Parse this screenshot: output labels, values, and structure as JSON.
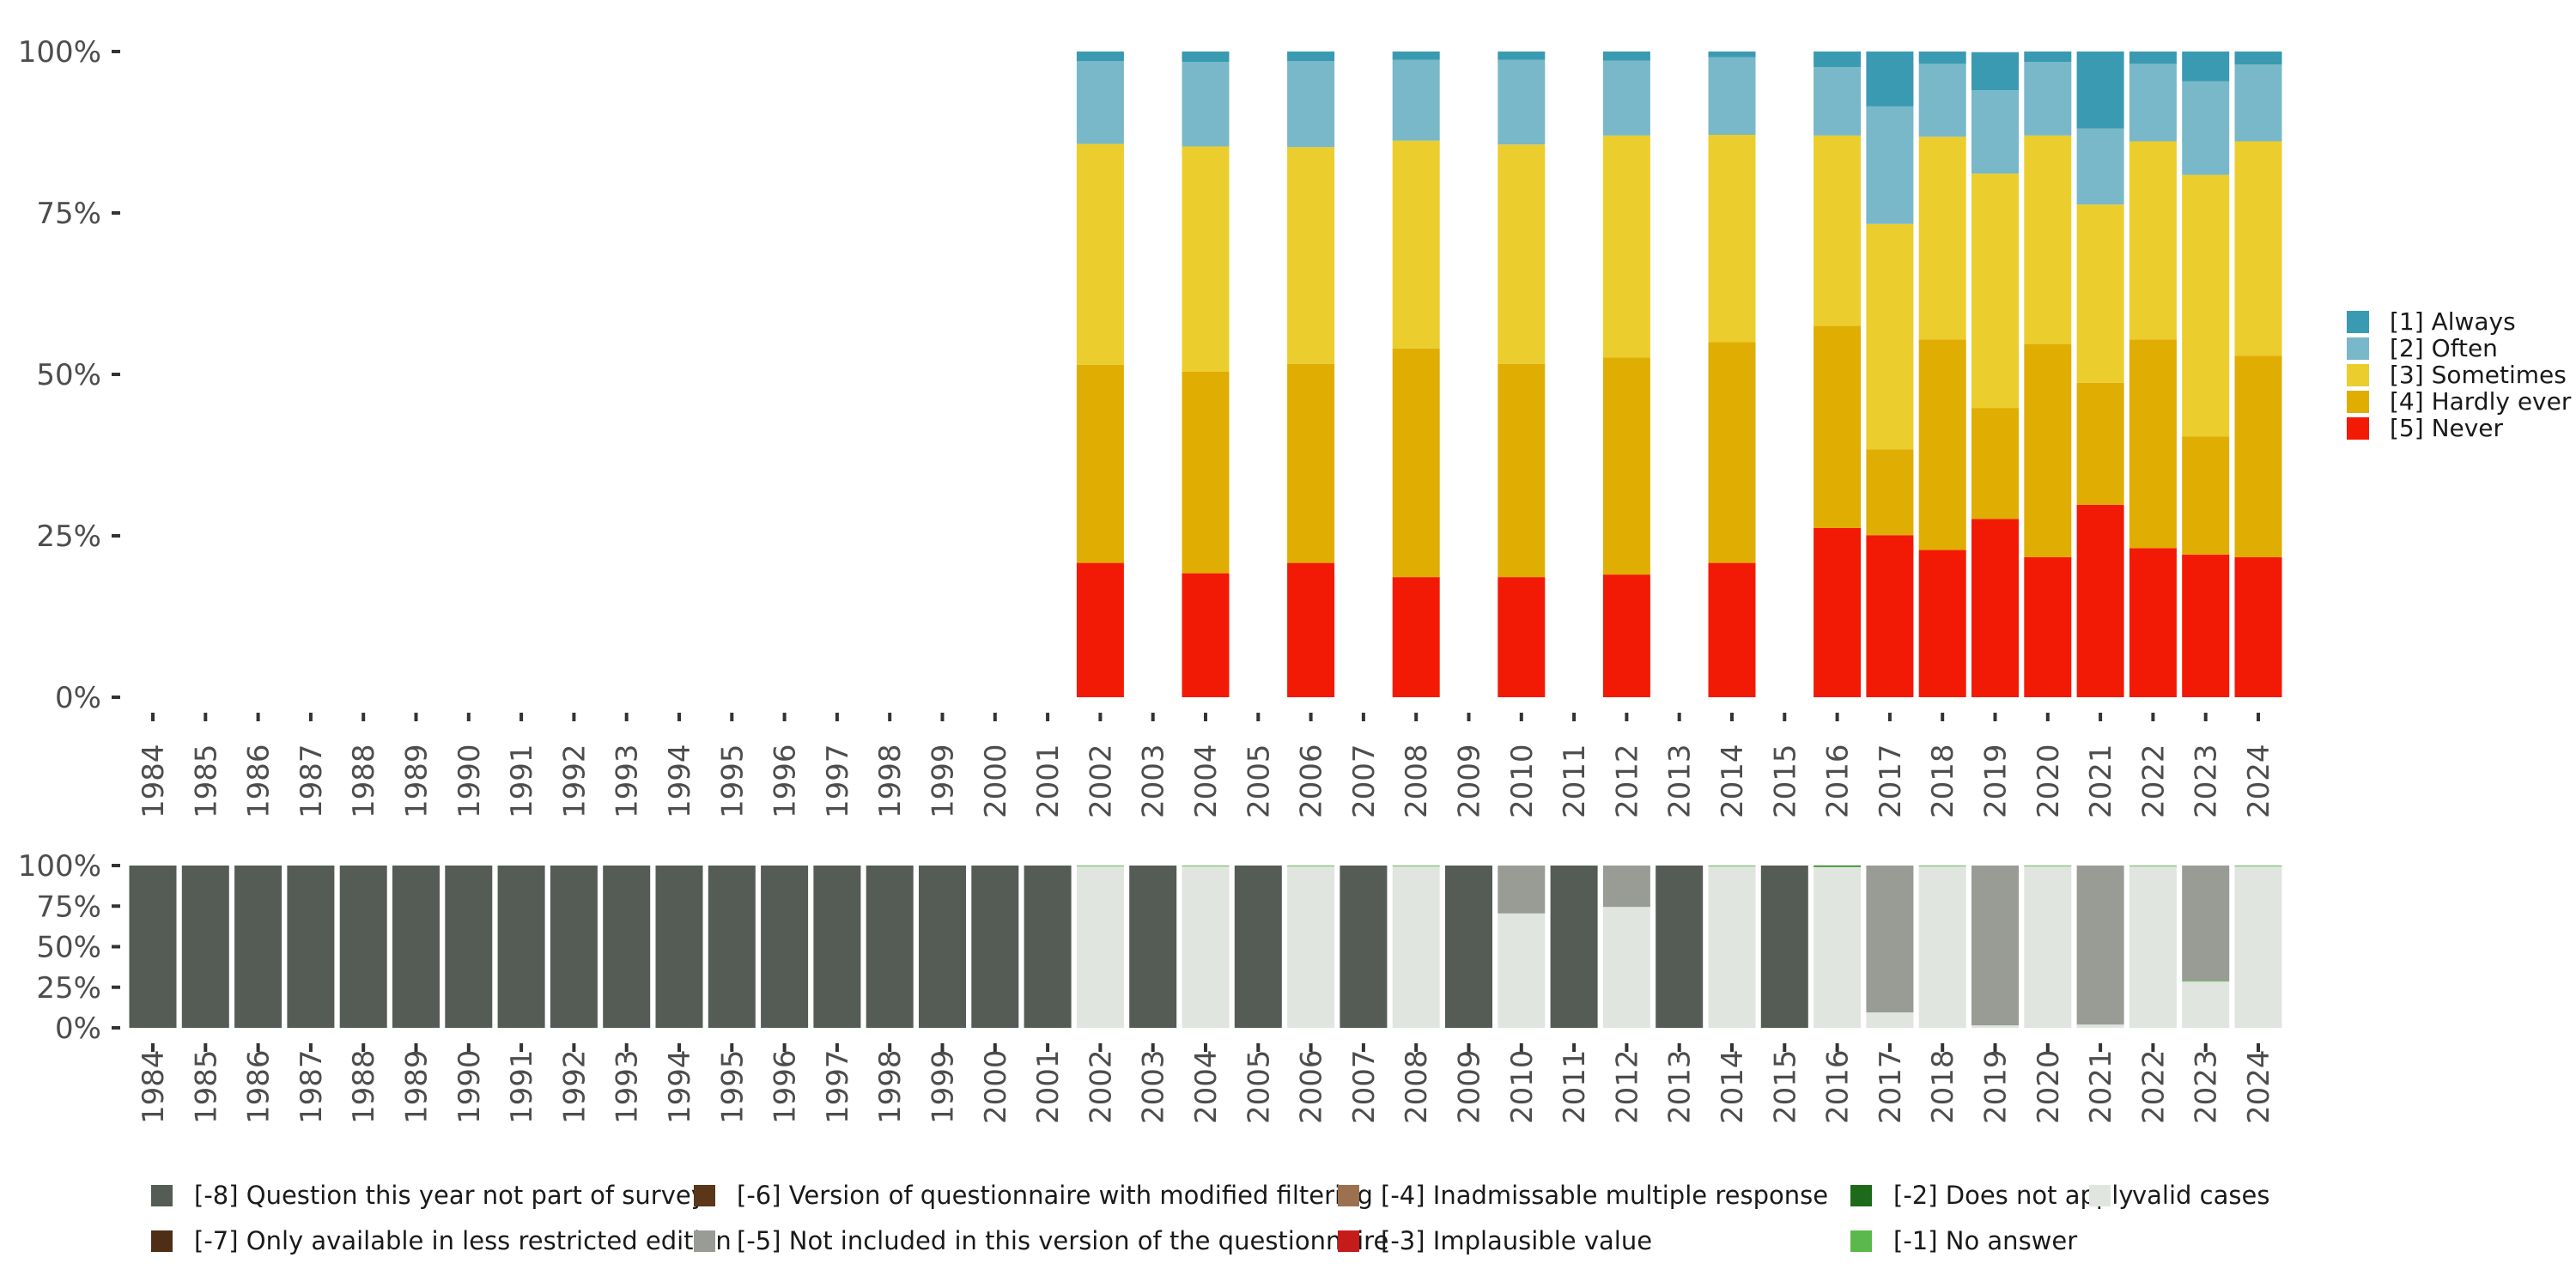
{
  "chart_data": [
    {
      "name": "response-distribution",
      "type": "bar",
      "stacked": true,
      "normalized": true,
      "categories": [
        "1984",
        "1985",
        "1986",
        "1987",
        "1988",
        "1989",
        "1990",
        "1991",
        "1992",
        "1993",
        "1994",
        "1995",
        "1996",
        "1997",
        "1998",
        "1999",
        "2000",
        "2001",
        "2002",
        "2003",
        "2004",
        "2005",
        "2006",
        "2007",
        "2008",
        "2009",
        "2010",
        "2011",
        "2012",
        "2013",
        "2014",
        "2015",
        "2016",
        "2017",
        "2018",
        "2019",
        "2020",
        "2021",
        "2022",
        "2023",
        "2024"
      ],
      "ylim": [
        0,
        100
      ],
      "yticks": [
        0,
        25,
        50,
        75,
        100
      ],
      "ytick_labels": [
        "0%",
        "25%",
        "50%",
        "75%",
        "100%"
      ],
      "legend_position": "right",
      "series": [
        {
          "name": "[5] Never",
          "color": "#f21a05",
          "values": [
            null,
            null,
            null,
            null,
            null,
            null,
            null,
            null,
            null,
            null,
            null,
            null,
            null,
            null,
            null,
            null,
            null,
            null,
            20.8,
            null,
            19.2,
            null,
            20.8,
            null,
            18.6,
            null,
            18.6,
            null,
            19.0,
            null,
            20.8,
            null,
            26.2,
            25.1,
            22.8,
            27.6,
            21.7,
            29.8,
            23.1,
            22.1,
            21.7
          ]
        },
        {
          "name": "[4] Hardly ever",
          "color": "#e0ad02",
          "values": [
            null,
            null,
            null,
            null,
            null,
            null,
            null,
            null,
            null,
            null,
            null,
            null,
            null,
            null,
            null,
            null,
            null,
            null,
            30.7,
            null,
            31.2,
            null,
            30.8,
            null,
            35.4,
            null,
            33.0,
            null,
            33.6,
            null,
            34.2,
            null,
            31.3,
            13.3,
            32.6,
            17.2,
            33.0,
            18.9,
            32.3,
            18.3,
            31.2
          ]
        },
        {
          "name": "[3] Sometimes",
          "color": "#ebcd2e",
          "values": [
            null,
            null,
            null,
            null,
            null,
            null,
            null,
            null,
            null,
            null,
            null,
            null,
            null,
            null,
            null,
            null,
            null,
            null,
            34.2,
            null,
            34.9,
            null,
            33.6,
            null,
            32.2,
            null,
            34.0,
            null,
            34.4,
            null,
            32.1,
            null,
            29.5,
            34.9,
            31.4,
            36.3,
            32.3,
            27.6,
            30.7,
            40.5,
            33.2
          ]
        },
        {
          "name": "[2] Often",
          "color": "#78b8c8",
          "values": [
            null,
            null,
            null,
            null,
            null,
            null,
            null,
            null,
            null,
            null,
            null,
            null,
            null,
            null,
            null,
            null,
            null,
            null,
            12.8,
            null,
            13.1,
            null,
            13.3,
            null,
            12.5,
            null,
            13.1,
            null,
            11.6,
            null,
            12.0,
            null,
            10.6,
            18.2,
            11.3,
            12.9,
            11.4,
            11.8,
            12.0,
            14.5,
            11.9
          ]
        },
        {
          "name": "[1] Always",
          "color": "#3a9ab1",
          "values": [
            null,
            null,
            null,
            null,
            null,
            null,
            null,
            null,
            null,
            null,
            null,
            null,
            null,
            null,
            null,
            null,
            null,
            null,
            1.5,
            null,
            1.6,
            null,
            1.5,
            null,
            1.3,
            null,
            1.3,
            null,
            1.4,
            null,
            0.9,
            null,
            2.4,
            8.5,
            1.9,
            5.9,
            1.6,
            11.9,
            1.9,
            4.6,
            2.0
          ]
        }
      ]
    },
    {
      "name": "missing-value-distribution",
      "type": "bar",
      "stacked": true,
      "normalized": true,
      "categories": [
        "1984",
        "1985",
        "1986",
        "1987",
        "1988",
        "1989",
        "1990",
        "1991",
        "1992",
        "1993",
        "1994",
        "1995",
        "1996",
        "1997",
        "1998",
        "1999",
        "2000",
        "2001",
        "2002",
        "2003",
        "2004",
        "2005",
        "2006",
        "2007",
        "2008",
        "2009",
        "2010",
        "2011",
        "2012",
        "2013",
        "2014",
        "2015",
        "2016",
        "2017",
        "2018",
        "2019",
        "2020",
        "2021",
        "2022",
        "2023",
        "2024"
      ],
      "ylim": [
        0,
        100
      ],
      "yticks": [
        0,
        25,
        50,
        75,
        100
      ],
      "ytick_labels": [
        "0%",
        "25%",
        "50%",
        "75%",
        "100%"
      ],
      "legend_position": "bottom",
      "series": [
        {
          "name": "valid cases",
          "color": "#e1e5e0",
          "values": [
            0,
            0,
            0,
            0,
            0,
            0,
            0,
            0,
            0,
            0,
            0,
            0,
            0,
            0,
            0,
            0,
            0,
            0,
            99.5,
            0,
            99.5,
            0,
            99.5,
            0,
            99.5,
            0,
            70.5,
            0,
            74.5,
            0,
            99.5,
            0,
            99.0,
            9.5,
            99.5,
            1.5,
            99.5,
            2.0,
            99.5,
            28.5,
            99.5
          ]
        },
        {
          "name": "[-1] No answer",
          "color": "#5ab94a",
          "values": [
            0,
            0,
            0,
            0,
            0,
            0,
            0,
            0,
            0,
            0,
            0,
            0,
            0,
            0,
            0,
            0,
            0,
            0,
            0.5,
            0,
            0.5,
            0,
            0.5,
            0,
            0.5,
            0,
            0,
            0,
            0,
            0,
            0.5,
            0,
            0.5,
            0,
            0.5,
            0,
            0.5,
            0,
            0.5,
            0.5,
            0.5
          ]
        },
        {
          "name": "[-2] Does not apply",
          "color": "#1d6b1a",
          "values": [
            0,
            0,
            0,
            0,
            0,
            0,
            0,
            0,
            0,
            0,
            0,
            0,
            0,
            0,
            0,
            0,
            0,
            0,
            0,
            0,
            0,
            0,
            0,
            0,
            0,
            0,
            0,
            0,
            0,
            0,
            0,
            0,
            0.5,
            0,
            0,
            0,
            0,
            0,
            0,
            0,
            0
          ]
        },
        {
          "name": "[-3] Implausible value",
          "color": "#c51b1b",
          "values": [
            0,
            0,
            0,
            0,
            0,
            0,
            0,
            0,
            0,
            0,
            0,
            0,
            0,
            0,
            0,
            0,
            0,
            0,
            0,
            0,
            0,
            0,
            0,
            0,
            0,
            0,
            0,
            0,
            0,
            0,
            0,
            0,
            0,
            0,
            0,
            0,
            0,
            0,
            0,
            0,
            0
          ]
        },
        {
          "name": "[-4] Inadmissable multiple response",
          "color": "#9b7150",
          "values": [
            0,
            0,
            0,
            0,
            0,
            0,
            0,
            0,
            0,
            0,
            0,
            0,
            0,
            0,
            0,
            0,
            0,
            0,
            0,
            0,
            0,
            0,
            0,
            0,
            0,
            0,
            0,
            0,
            0,
            0,
            0,
            0,
            0,
            0,
            0,
            0,
            0,
            0,
            0,
            0,
            0
          ]
        },
        {
          "name": "[-5] Not included in this version of the questionnaire",
          "color": "#989c95",
          "values": [
            0,
            0,
            0,
            0,
            0,
            0,
            0,
            0,
            0,
            0,
            0,
            0,
            0,
            0,
            0,
            0,
            0,
            0,
            0,
            0,
            0,
            0,
            0,
            0,
            0,
            0,
            29.5,
            0,
            25.5,
            0,
            0,
            0,
            0,
            90.5,
            0,
            98.5,
            0,
            98.0,
            0,
            71.0,
            0
          ]
        },
        {
          "name": "[-6] Version of questionnaire with modified filtering",
          "color": "#5b3618",
          "values": [
            0,
            0,
            0,
            0,
            0,
            0,
            0,
            0,
            0,
            0,
            0,
            0,
            0,
            0,
            0,
            0,
            0,
            0,
            0,
            0,
            0,
            0,
            0,
            0,
            0,
            0,
            0,
            0,
            0,
            0,
            0,
            0,
            0,
            0,
            0,
            0,
            0,
            0,
            0,
            0,
            0
          ]
        },
        {
          "name": "[-7] Only available in less restricted edition",
          "color": "#4e2e15",
          "values": [
            0,
            0,
            0,
            0,
            0,
            0,
            0,
            0,
            0,
            0,
            0,
            0,
            0,
            0,
            0,
            0,
            0,
            0,
            0,
            0,
            0,
            0,
            0,
            0,
            0,
            0,
            0,
            0,
            0,
            0,
            0,
            0,
            0,
            0,
            0,
            0,
            0,
            0,
            0,
            0,
            0
          ]
        },
        {
          "name": "[-8] Question this year not part of survey",
          "color": "#555b55",
          "values": [
            100,
            100,
            100,
            100,
            100,
            100,
            100,
            100,
            100,
            100,
            100,
            100,
            100,
            100,
            100,
            100,
            100,
            100,
            0,
            100,
            0,
            100,
            0,
            100,
            0,
            100,
            0,
            100,
            0,
            100,
            0,
            100,
            0,
            0,
            0,
            0,
            0,
            0,
            0,
            0,
            0
          ]
        }
      ],
      "legend_order": [
        "[-8] Question this year not part of survey",
        "[-7] Only available in less restricted edition",
        "[-6] Version of questionnaire with modified filtering",
        "[-5] Not included in this version of the questionnaire",
        "[-4] Inadmissable multiple response",
        "[-3] Implausible value",
        "[-2] Does not apply",
        "[-1] No answer",
        "valid cases"
      ]
    }
  ]
}
